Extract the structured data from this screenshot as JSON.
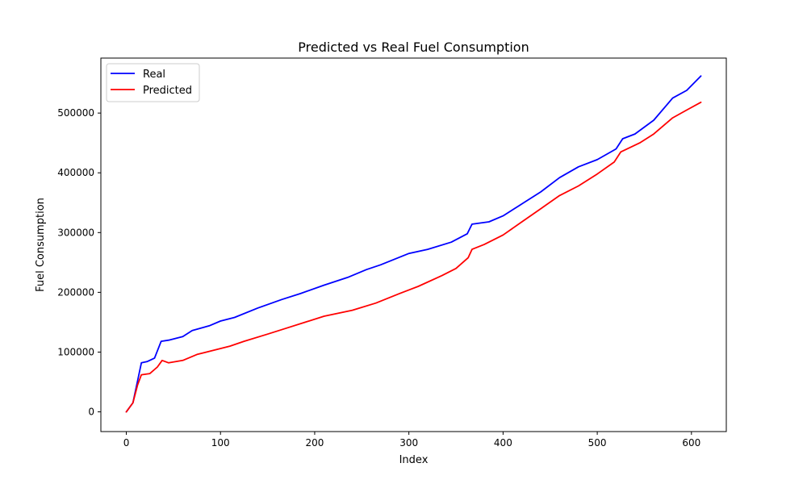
{
  "chart_data": {
    "type": "line",
    "title": "Predicted vs Real Fuel Consumption",
    "xlabel": "Index",
    "ylabel": "Fuel Consumption",
    "xlim": [
      -27,
      637
    ],
    "ylim": [
      -33000,
      592000
    ],
    "xticks": [
      0,
      100,
      200,
      300,
      400,
      500,
      600
    ],
    "yticks": [
      0,
      100000,
      200000,
      300000,
      400000,
      500000
    ],
    "legend_position": "top-left",
    "grid": false,
    "series": [
      {
        "name": "Real",
        "color": "#0000ff",
        "points": [
          [
            0,
            0
          ],
          [
            7,
            15000
          ],
          [
            12,
            52000
          ],
          [
            16,
            82000
          ],
          [
            22,
            84000
          ],
          [
            30,
            90000
          ],
          [
            37,
            118000
          ],
          [
            45,
            120000
          ],
          [
            60,
            126000
          ],
          [
            70,
            136000
          ],
          [
            88,
            144000
          ],
          [
            100,
            152000
          ],
          [
            115,
            158000
          ],
          [
            140,
            174000
          ],
          [
            165,
            188000
          ],
          [
            185,
            198000
          ],
          [
            210,
            212000
          ],
          [
            235,
            225000
          ],
          [
            255,
            238000
          ],
          [
            270,
            246000
          ],
          [
            300,
            265000
          ],
          [
            320,
            272000
          ],
          [
            345,
            284000
          ],
          [
            362,
            298000
          ],
          [
            367,
            314000
          ],
          [
            385,
            318000
          ],
          [
            400,
            328000
          ],
          [
            420,
            348000
          ],
          [
            440,
            368000
          ],
          [
            460,
            392000
          ],
          [
            480,
            410000
          ],
          [
            500,
            422000
          ],
          [
            520,
            440000
          ],
          [
            527,
            457000
          ],
          [
            540,
            465000
          ],
          [
            560,
            488000
          ],
          [
            580,
            525000
          ],
          [
            595,
            538000
          ],
          [
            610,
            562000
          ]
        ]
      },
      {
        "name": "Predicted",
        "color": "#ff0000",
        "points": [
          [
            0,
            0
          ],
          [
            7,
            15000
          ],
          [
            12,
            45000
          ],
          [
            16,
            62000
          ],
          [
            25,
            64000
          ],
          [
            33,
            75000
          ],
          [
            38,
            86000
          ],
          [
            45,
            82000
          ],
          [
            60,
            86000
          ],
          [
            75,
            96000
          ],
          [
            90,
            102000
          ],
          [
            110,
            110000
          ],
          [
            125,
            118000
          ],
          [
            150,
            130000
          ],
          [
            170,
            140000
          ],
          [
            190,
            150000
          ],
          [
            210,
            160000
          ],
          [
            240,
            170000
          ],
          [
            265,
            182000
          ],
          [
            290,
            198000
          ],
          [
            310,
            210000
          ],
          [
            335,
            228000
          ],
          [
            350,
            240000
          ],
          [
            363,
            258000
          ],
          [
            367,
            272000
          ],
          [
            380,
            280000
          ],
          [
            400,
            296000
          ],
          [
            420,
            318000
          ],
          [
            440,
            340000
          ],
          [
            460,
            362000
          ],
          [
            480,
            378000
          ],
          [
            500,
            398000
          ],
          [
            518,
            418000
          ],
          [
            525,
            435000
          ],
          [
            545,
            450000
          ],
          [
            560,
            465000
          ],
          [
            580,
            492000
          ],
          [
            595,
            505000
          ],
          [
            610,
            518000
          ]
        ]
      }
    ]
  }
}
